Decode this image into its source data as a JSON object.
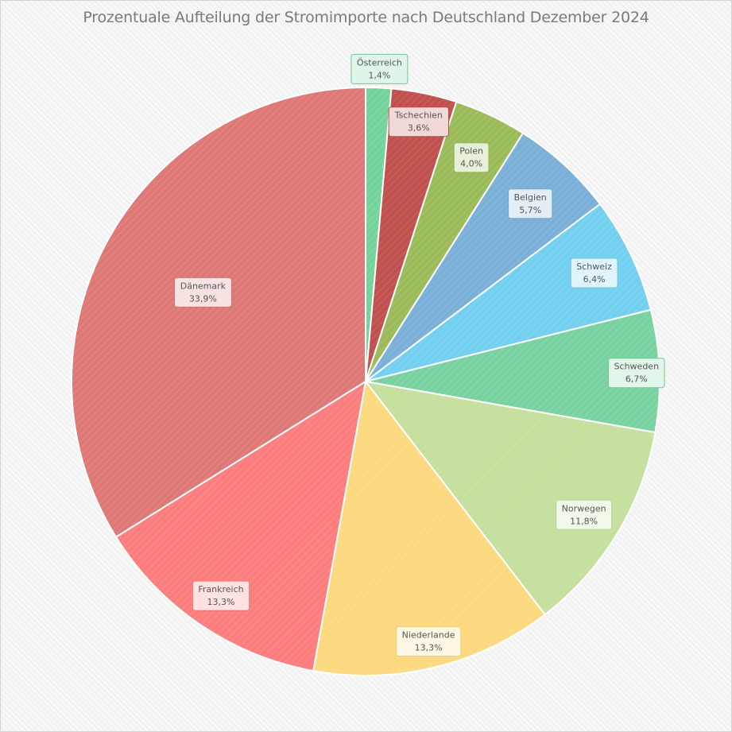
{
  "chart_data": {
    "type": "pie",
    "title": "Prozentuale Aufteilung der Stromimporte nach Deutschland Dezember 2024",
    "slices": [
      {
        "label": "Österreich",
        "value": 1.4,
        "display": "1,4%",
        "color": "#74d39a"
      },
      {
        "label": "Tschechien",
        "value": 3.6,
        "display": "3,6%",
        "color": "#c0504d"
      },
      {
        "label": "Polen",
        "value": 4.0,
        "display": "4,0%",
        "color": "#9bbb59"
      },
      {
        "label": "Belgien",
        "value": 5.7,
        "display": "5,7%",
        "color": "#7aafd8"
      },
      {
        "label": "Schweiz",
        "value": 6.4,
        "display": "6,4%",
        "color": "#72cff0"
      },
      {
        "label": "Schweden",
        "value": 6.7,
        "display": "6,7%",
        "color": "#78d29f"
      },
      {
        "label": "Norwegen",
        "value": 11.8,
        "display": "11,8%",
        "color": "#c5df9c"
      },
      {
        "label": "Niederlande",
        "value": 13.3,
        "display": "13,3%",
        "color": "#fcd97e"
      },
      {
        "label": "Frankreich",
        "value": 13.3,
        "display": "13,3%",
        "color": "#fc7d7d"
      },
      {
        "label": "Dänemark",
        "value": 33.9,
        "display": "33,9%",
        "color": "#de7876"
      }
    ]
  }
}
